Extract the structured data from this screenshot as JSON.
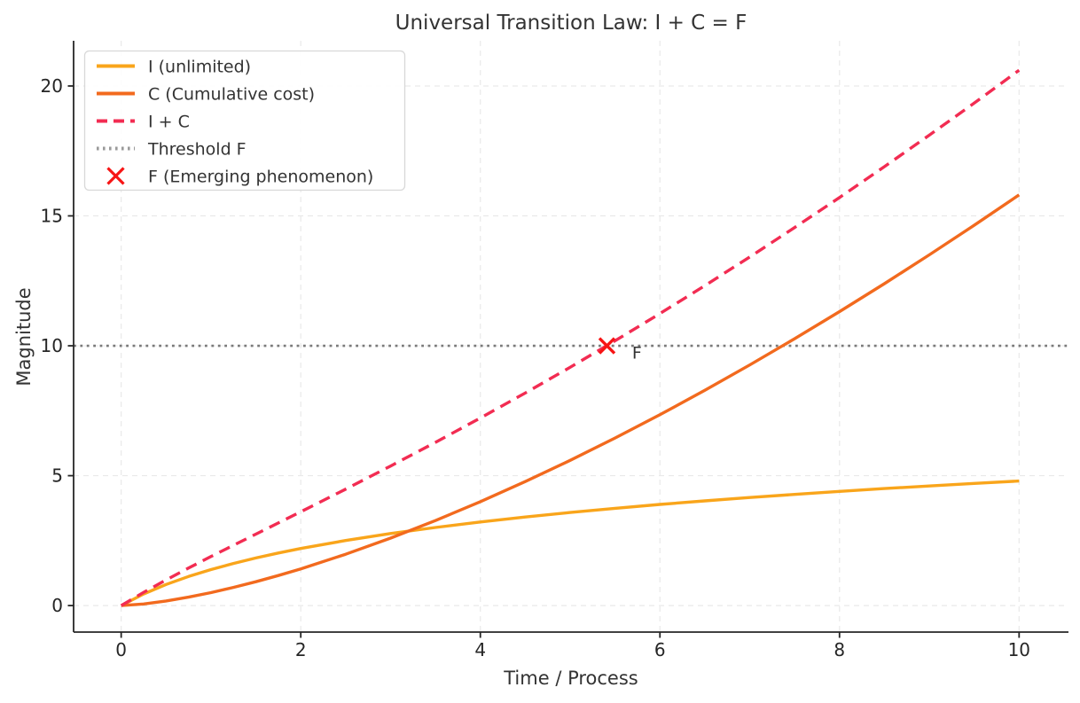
{
  "figure": {
    "background": "#ffffff"
  },
  "chart_data": {
    "type": "line",
    "title": "Universal Transition Law: I + C = F",
    "xlabel": "Time / Process",
    "ylabel": "Magnitude",
    "xlim": [
      -0.53,
      10.55
    ],
    "ylim": [
      -1.02,
      21.74
    ],
    "xticks": [
      0,
      2,
      4,
      6,
      8,
      10
    ],
    "yticks": [
      0,
      5,
      10,
      15,
      20
    ],
    "grid": true,
    "legend_position": "upper-left",
    "x": [
      0,
      0.25,
      0.5,
      0.75,
      1,
      1.25,
      1.5,
      1.75,
      2,
      2.5,
      3,
      3.5,
      4,
      4.5,
      5,
      5.5,
      6,
      6.5,
      7,
      7.5,
      8,
      8.5,
      9,
      9.5,
      10
    ],
    "series": [
      {
        "name": "I (unlimited)",
        "color": "#F9A51B",
        "style": "solid",
        "width": 3.4,
        "values": [
          0,
          0.446,
          0.811,
          1.119,
          1.386,
          1.622,
          1.833,
          2.023,
          2.197,
          2.506,
          2.773,
          3.008,
          3.219,
          3.409,
          3.584,
          3.744,
          3.892,
          4.03,
          4.159,
          4.28,
          4.394,
          4.503,
          4.605,
          4.703,
          4.796
        ]
      },
      {
        "name": "C (Cumulative cost)",
        "color": "#F26A1E",
        "style": "solid",
        "width": 3.4,
        "values": [
          0,
          0.063,
          0.177,
          0.325,
          0.5,
          0.699,
          0.919,
          1.157,
          1.414,
          1.976,
          2.598,
          3.274,
          4.0,
          4.773,
          5.59,
          6.449,
          7.348,
          8.286,
          9.26,
          10.27,
          11.314,
          12.39,
          13.5,
          14.639,
          15.811
        ]
      },
      {
        "name": "I + C",
        "color": "#F22C52",
        "style": "dashed",
        "width": 3.4,
        "values": [
          0,
          0.509,
          0.988,
          1.444,
          1.886,
          2.321,
          2.752,
          3.18,
          3.611,
          4.482,
          5.371,
          6.282,
          7.219,
          8.182,
          9.174,
          10.193,
          11.24,
          12.316,
          13.419,
          14.55,
          15.708,
          16.893,
          18.105,
          19.342,
          20.607
        ]
      }
    ],
    "threshold": {
      "label": "Threshold F",
      "value": 10,
      "color": "#7A7A7A",
      "style": "dotted",
      "width": 2.6
    },
    "marker": {
      "label": "F (Emerging phenomenon)",
      "x": 5.41,
      "y": 10,
      "shape": "x",
      "color": "#F71414"
    },
    "annotation": {
      "text": "F",
      "x": 5.69,
      "y": 9.5,
      "color": "#F71414"
    },
    "legend": {
      "entries": [
        {
          "label": "I (unlimited)",
          "swatch": "line",
          "style": "solid",
          "color": "#F9A51B"
        },
        {
          "label": "C (Cumulative cost)",
          "swatch": "line",
          "style": "solid",
          "color": "#F26A1E"
        },
        {
          "label": "I + C",
          "swatch": "line",
          "style": "dashed",
          "color": "#F22C52"
        },
        {
          "label": "Threshold F",
          "swatch": "line",
          "style": "dotted",
          "color": "#9A9A9A"
        },
        {
          "label": "F (Emerging phenomenon)",
          "swatch": "x-marker",
          "style": "none",
          "color": "#F71414"
        }
      ]
    },
    "axis_color": "#262626",
    "grid_color": "#E9E9E9",
    "text_color": "#333333"
  }
}
